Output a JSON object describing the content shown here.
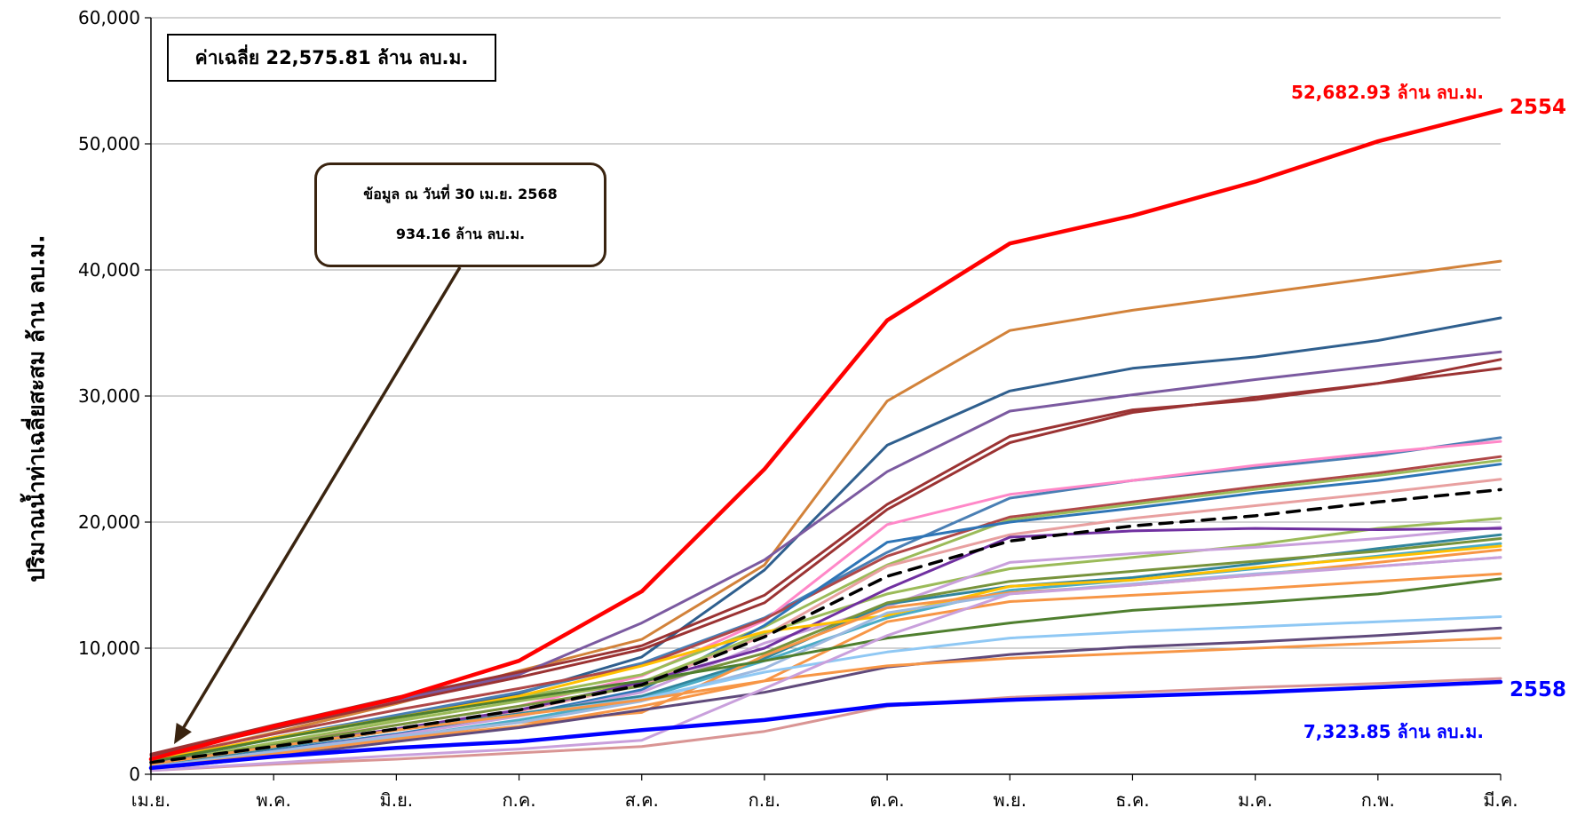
{
  "chart_data": {
    "type": "line",
    "title": "",
    "xlabel": "",
    "ylabel": "ปริมาณน้ำท่าเฉลี่ยสะสม ล้าน ลบ.ม.",
    "categories": [
      "เม.ย.",
      "พ.ค.",
      "มิ.ย.",
      "ก.ค.",
      "ส.ค.",
      "ก.ย.",
      "ต.ค.",
      "พ.ย.",
      "ธ.ค.",
      "ม.ค.",
      "ก.พ.",
      "มี.ค."
    ],
    "yticks": [
      "0",
      "10,000",
      "20,000",
      "30,000",
      "40,000",
      "50,000",
      "60,000"
    ],
    "ylim": [
      0,
      60000
    ],
    "grid": true,
    "series": [
      {
        "name": "2554",
        "color": "#ff0000",
        "width": 4.5,
        "values": [
          1200,
          3800,
          6000,
          9000,
          14500,
          24200,
          36000,
          42100,
          44300,
          47000,
          50200,
          52683
        ]
      },
      {
        "color": "#d2823a",
        "width": 3,
        "values": [
          1100,
          3300,
          5600,
          8200,
          10700,
          16600,
          29600,
          35200,
          36800,
          38100,
          39400,
          40700
        ]
      },
      {
        "color": "#2f5f8e",
        "width": 3,
        "values": [
          900,
          2800,
          4600,
          6400,
          9300,
          16200,
          26100,
          30400,
          32200,
          33100,
          34400,
          36200
        ]
      },
      {
        "color": "#7b5aa0",
        "width": 3,
        "values": [
          1300,
          3800,
          5900,
          7900,
          12000,
          17000,
          24000,
          28800,
          30100,
          31300,
          32400,
          33500
        ]
      },
      {
        "color": "#9b3333",
        "width": 3,
        "values": [
          1600,
          3900,
          6100,
          8100,
          10200,
          14200,
          21400,
          26800,
          28900,
          29700,
          31000,
          32900
        ]
      },
      {
        "color": "#9b3333",
        "width": 3,
        "values": [
          1500,
          3600,
          5700,
          7700,
          9900,
          13600,
          21000,
          26300,
          28700,
          29900,
          31000,
          32200
        ]
      },
      {
        "color": "#4a7fb4",
        "width": 3,
        "values": [
          1000,
          2900,
          4700,
          6500,
          8800,
          12400,
          17600,
          21900,
          23300,
          24300,
          25300,
          26700
        ]
      },
      {
        "color": "#ff88c8",
        "width": 3,
        "values": [
          800,
          2400,
          3900,
          5400,
          7800,
          12200,
          19800,
          22200,
          23300,
          24500,
          25500,
          26400
        ]
      },
      {
        "color": "#b04848",
        "width": 3,
        "values": [
          1200,
          3200,
          5100,
          6800,
          8600,
          12300,
          17300,
          20400,
          21600,
          22800,
          23900,
          25200
        ]
      },
      {
        "color": "#9bbb59",
        "width": 3,
        "values": [
          1000,
          2800,
          4400,
          6100,
          7900,
          11700,
          16600,
          20200,
          21400,
          22600,
          23700,
          24900
        ]
      },
      {
        "color": "#2e75b6",
        "width": 3,
        "values": [
          600,
          1900,
          3200,
          4700,
          6700,
          11800,
          18400,
          20000,
          21100,
          22300,
          23300,
          24600
        ]
      },
      {
        "color": "#e8a0a0",
        "width": 3,
        "values": [
          700,
          2100,
          3500,
          5000,
          7100,
          11000,
          16500,
          19000,
          20300,
          21300,
          22300,
          23400
        ]
      },
      {
        "color": "#000000",
        "width": 3.5,
        "dash": "14,10",
        "values": [
          934,
          2200,
          3600,
          5100,
          7100,
          10900,
          15700,
          18500,
          19700,
          20500,
          21600,
          22576
        ]
      },
      {
        "color": "#9bbb59",
        "width": 3,
        "values": [
          800,
          2500,
          4200,
          5800,
          7300,
          11200,
          14300,
          16300,
          17200,
          18200,
          19500,
          20300
        ]
      },
      {
        "color": "#c9a0dc",
        "width": 3,
        "values": [
          600,
          1800,
          3100,
          4600,
          6500,
          10400,
          13300,
          16800,
          17500,
          18000,
          18700,
          19600
        ]
      },
      {
        "color": "#7030a0",
        "width": 3,
        "values": [
          900,
          2200,
          3600,
          5100,
          7300,
          10000,
          14700,
          18800,
          19300,
          19500,
          19400,
          19500
        ]
      },
      {
        "color": "#31859c",
        "width": 3,
        "values": [
          700,
          2100,
          3500,
          4800,
          6200,
          9200,
          13500,
          14900,
          15600,
          16700,
          17900,
          19000
        ]
      },
      {
        "color": "#77933c",
        "width": 3,
        "values": [
          800,
          2300,
          3900,
          5400,
          7000,
          9600,
          13600,
          15300,
          16100,
          16900,
          17700,
          18700
        ]
      },
      {
        "color": "#4bacc6",
        "width": 3,
        "values": [
          500,
          1600,
          2900,
          4300,
          6000,
          9000,
          12400,
          14600,
          15400,
          16300,
          17300,
          18300
        ]
      },
      {
        "color": "#ffc000",
        "width": 3,
        "values": [
          1100,
          2900,
          4500,
          6200,
          8600,
          11300,
          12600,
          14900,
          15400,
          16400,
          17200,
          18100
        ]
      },
      {
        "color": "#f79646",
        "width": 3,
        "values": [
          500,
          1600,
          2900,
          4100,
          4900,
          9400,
          13200,
          14400,
          15000,
          15800,
          16800,
          17800
        ]
      },
      {
        "color": "#9db9e0",
        "width": 3,
        "values": [
          600,
          1800,
          3000,
          4100,
          5800,
          8400,
          12800,
          14300,
          15100,
          15900,
          16500,
          17200
        ]
      },
      {
        "color": "#f79646",
        "width": 3,
        "values": [
          500,
          1600,
          2800,
          3800,
          5400,
          7400,
          12100,
          13700,
          14200,
          14700,
          15300,
          15900
        ]
      },
      {
        "color": "#4f7f2f",
        "width": 3,
        "values": [
          1000,
          2800,
          4500,
          6000,
          7400,
          9000,
          10800,
          12000,
          13000,
          13600,
          14300,
          15500
        ]
      },
      {
        "color": "#8fc8f4",
        "width": 3,
        "values": [
          800,
          2200,
          3500,
          4700,
          6000,
          8100,
          9700,
          10800,
          11300,
          11700,
          12100,
          12500
        ]
      },
      {
        "color": "#604a7b",
        "width": 3,
        "values": [
          400,
          1400,
          2600,
          3700,
          5100,
          6500,
          8500,
          9500,
          10100,
          10500,
          11000,
          11600
        ]
      },
      {
        "color": "#f79646",
        "width": 3,
        "values": [
          800,
          2200,
          3500,
          4700,
          5900,
          7400,
          8600,
          9200,
          9600,
          10000,
          10400,
          10800
        ]
      },
      {
        "color": "#d99594",
        "width": 3,
        "values": [
          300,
          800,
          1200,
          1700,
          2200,
          3400,
          5400,
          6100,
          6500,
          6900,
          7200,
          7600
        ]
      },
      {
        "color": "#c9a0dc",
        "width": 3,
        "values": [
          300,
          900,
          1500,
          2000,
          2700,
          6800,
          11000,
          14300,
          15000,
          15800,
          16500,
          17200
        ]
      },
      {
        "name": "2558",
        "color": "#0000ff",
        "width": 4.5,
        "values": [
          500,
          1400,
          2100,
          2600,
          3500,
          4300,
          5500,
          5900,
          6200,
          6500,
          6900,
          7324
        ]
      }
    ]
  },
  "annotations": {
    "average_box": "ค่าเฉลี่ย 22,575.81 ล้าน ลบ.ม.",
    "note_line1": "ข้อมูล ณ วันที่ 30 เม.ย. 2568",
    "note_line2": "934.16 ล้าน ลบ.ม.",
    "max_value": "52,682.93 ล้าน ลบ.ม.",
    "max_year": "2554",
    "min_value": "7,323.85 ล้าน ลบ.ม.",
    "min_year": "2558"
  }
}
